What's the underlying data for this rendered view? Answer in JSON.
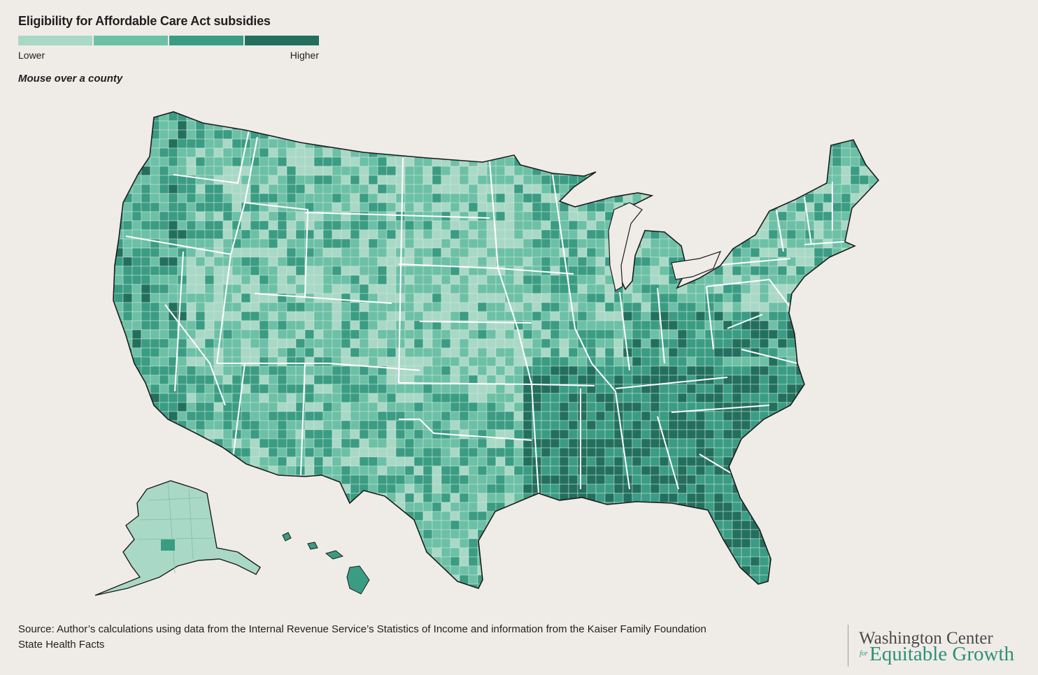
{
  "title": "Eligibility for Affordable Care Act subsidies",
  "legend": {
    "low_label": "Lower",
    "high_label": "Higher",
    "colors": [
      "#a9d9c6",
      "#6cc0a6",
      "#3a9c83",
      "#236f5d"
    ]
  },
  "instruction": "Mouse over a county",
  "source": "Source: Author’s calculations using data from the Internal Revenue Service’s Statistics of Income and information from the Kaiser Family Foundation State Health Facts",
  "brand": {
    "line1": "Washington Center",
    "for": "for",
    "line2": "Equitable Growth"
  },
  "colors": {
    "background": "#efece8",
    "state_border": "#ffffff",
    "county_border": "#cfe6dc",
    "outline": "#1c1c1c"
  }
}
